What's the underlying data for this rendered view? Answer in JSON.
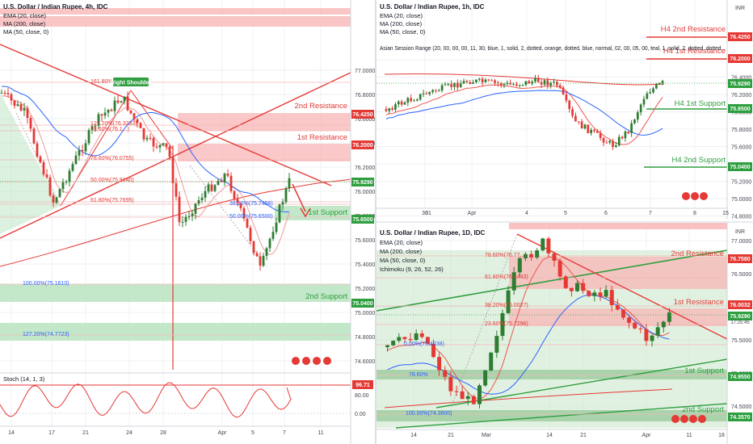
{
  "colors": {
    "up": "#26a69a",
    "down": "#ef5350",
    "candle_up": "#2e7d32",
    "candle_down": "#e53935",
    "res_zone": "#f8b6b6",
    "sup_zone": "#b9e4bf",
    "res_line": "#e53935",
    "sup_line": "#2e9e3f",
    "ema": "#e53935",
    "ma200": "#e53935",
    "ma50": "#2962ff",
    "stoch": "#e53935"
  },
  "panels": {
    "p4h": {
      "title": "U.S. Dollar / Indian Rupee, 4h, IDC",
      "legend": [
        "EMA (20, close)",
        "MA (200, close)",
        "MA (50, close, 0)"
      ],
      "y_ticks": [
        "77.0000",
        "76.8000",
        "76.6000",
        "76.4000",
        "76.2000",
        "76.0000",
        "75.8000",
        "75.6000",
        "75.4000",
        "75.2000",
        "75.0000",
        "74.8000",
        "74.6000"
      ],
      "price_tags": [
        {
          "label": "76.4250",
          "kind": "red"
        },
        {
          "label": "76.2000",
          "kind": "red"
        },
        {
          "label": "75.9290",
          "kind": "green"
        },
        {
          "label": "75.6500",
          "kind": "green"
        },
        {
          "label": "75.0400",
          "kind": "green"
        }
      ],
      "levels": [
        {
          "label": "2nd Resistance",
          "kind": "red"
        },
        {
          "label": "1st Resistance",
          "kind": "red"
        },
        {
          "label": "1st Support",
          "kind": "green"
        },
        {
          "label": "2nd Support",
          "kind": "green"
        }
      ],
      "fib": [
        {
          "label": "161.80%(76.5...)"
        },
        {
          "label": "127.20%(76.3233)"
        },
        {
          "label": "78.60%(76.1...)"
        },
        {
          "label": "78.60%(76.0755)"
        },
        {
          "label": "50.00%(75.9140)"
        },
        {
          "label": "61.80%(75.7695)"
        },
        {
          "label": "38.20%(75.7456)"
        },
        {
          "label": "50.00%(75.6500)"
        },
        {
          "label": "100.00%(75.1610)"
        },
        {
          "label": "127.20%(74.7723)"
        }
      ],
      "annotation": "Right Shoulder",
      "x_ticks": [
        "14",
        "17",
        "21",
        "24",
        "28",
        "Apr",
        "5",
        "7",
        "11"
      ],
      "stoch": {
        "label": "Stoch (14, 1, 3)",
        "value": "96.71",
        "ticks": [
          "80.00",
          "0.00"
        ]
      }
    },
    "p1h": {
      "title": "U.S. Dollar / Indian Rupee, 1h, IDC",
      "legend": [
        "EMA (20, close)",
        "MA (200, close)",
        "MA (50, close, 0)",
        "Asian Session Range (20, 00, 00, 00, 11, 30, blue, 1, solid, 2, dotted, orange, dotted, blue, normal, 02, 00, 05, 00, teal, 1, solid, 2, dotted, dotted..."
      ],
      "currency": "INR",
      "y_ticks": [
        "76.6000",
        "76.4000",
        "76.2000",
        "76.0000",
        "75.8000",
        "75.6000",
        "75.4000",
        "75.2000",
        "75.0000",
        "74.8000"
      ],
      "price_tags": [
        {
          "label": "76.4250",
          "kind": "red"
        },
        {
          "label": "76.2000",
          "kind": "red"
        },
        {
          "label": "75.9290",
          "kind": "green"
        },
        {
          "label": "75.6500",
          "kind": "green"
        },
        {
          "label": "75.0400",
          "kind": "green"
        }
      ],
      "levels": [
        {
          "label": "H4 2nd Resistance",
          "kind": "red"
        },
        {
          "label": "H4 1st Resistance",
          "kind": "red"
        },
        {
          "label": "H4 1st Support",
          "kind": "green"
        },
        {
          "label": "H4 2nd Support",
          "kind": "green"
        }
      ],
      "x_ticks": [
        "30",
        "31",
        "Apr",
        "4",
        "5",
        "6",
        "7",
        "8",
        "15"
      ]
    },
    "p1d": {
      "title": "U.S. Dollar / Indian Rupee, 1D, IDC",
      "legend": [
        "EMA (20, close)",
        "MA (200, close)",
        "MA (50, close, 0)",
        "Ichimoku (9, 26, 52, 26)"
      ],
      "currency": "INR",
      "y_ticks": [
        "77.0000",
        "76.5000",
        "76.0000",
        "75.5000",
        "75.0000",
        "74.5000"
      ],
      "price_tags": [
        {
          "label": "76.7580",
          "kind": "red"
        },
        {
          "label": "76.0032",
          "kind": "red"
        },
        {
          "label": "75.9290",
          "kind": "green"
        },
        {
          "label": "74.9550",
          "kind": "green"
        },
        {
          "label": "74.3570",
          "kind": "green"
        }
      ],
      "extra_tag": "17:25:45",
      "levels": [
        {
          "label": "2nd Resistance",
          "kind": "red"
        },
        {
          "label": "1st Resistance",
          "kind": "red"
        },
        {
          "label": "1st Support",
          "kind": "green"
        },
        {
          "label": "2nd Support",
          "kind": "green"
        }
      ],
      "fib": [
        {
          "label": "78.60%(76.77...)"
        },
        {
          "label": "61.80%(76.4443)"
        },
        {
          "label": "38.20%(76.0027)"
        },
        {
          "label": "23.60%(75.7296)"
        },
        {
          "label": "0.00%(75.4238)"
        },
        {
          "label": "78.60%"
        },
        {
          "label": "100.00%(74.3600)"
        }
      ],
      "x_ticks": [
        "14",
        "21",
        "Mar",
        "14",
        "21",
        "Apr",
        "11",
        "18"
      ]
    }
  },
  "chart_data": [
    {
      "type": "line",
      "title": "U.S. Dollar / Indian Rupee, 4h, IDC",
      "ylim": [
        74.55,
        77.05
      ],
      "x": [
        "14",
        "17",
        "21",
        "24",
        "28",
        "Apr",
        "5",
        "7"
      ],
      "series": [
        {
          "name": "Close",
          "values": [
            76.5,
            75.8,
            76.3,
            76.55,
            75.75,
            75.9,
            75.3,
            75.93
          ]
        }
      ]
    },
    {
      "type": "line",
      "title": "U.S. Dollar / Indian Rupee, 1h, IDC",
      "ylim": [
        74.7,
        76.65
      ],
      "x": [
        "30",
        "31",
        "Apr",
        "4",
        "5",
        "6",
        "7"
      ],
      "series": [
        {
          "name": "Close",
          "values": [
            75.6,
            75.95,
            75.98,
            76.0,
            75.4,
            75.25,
            75.93
          ]
        }
      ]
    },
    {
      "type": "line",
      "title": "U.S. Dollar / Indian Rupee, 1D, IDC",
      "ylim": [
        74.2,
        77.1
      ],
      "x": [
        "14",
        "21",
        "Mar",
        "14",
        "21",
        "Apr"
      ],
      "series": [
        {
          "name": "Close",
          "values": [
            75.4,
            74.7,
            75.3,
            76.8,
            76.1,
            75.93
          ]
        }
      ]
    }
  ]
}
